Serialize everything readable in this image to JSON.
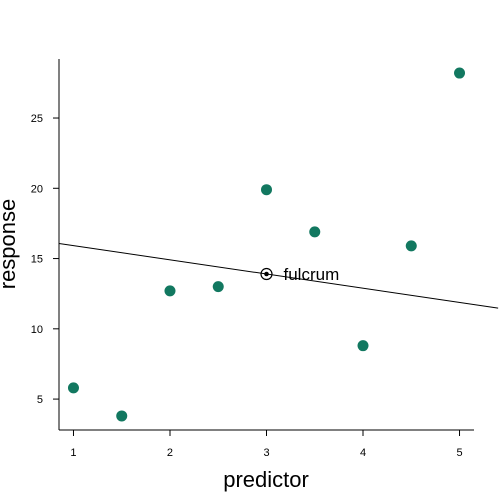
{
  "chart_data": {
    "type": "scatter",
    "xlabel": "predictor",
    "ylabel": "response",
    "xlim": [
      0.85,
      5.15
    ],
    "ylim": [
      2.8,
      29.2
    ],
    "x_ticks": [
      1,
      2,
      3,
      4,
      5
    ],
    "y_ticks": [
      5,
      10,
      15,
      20,
      25
    ],
    "grid": false,
    "point_color": "#127860",
    "points": [
      {
        "x": 1.0,
        "y": 5.8
      },
      {
        "x": 1.5,
        "y": 3.8
      },
      {
        "x": 2.0,
        "y": 12.7
      },
      {
        "x": 2.5,
        "y": 13.0
      },
      {
        "x": 3.0,
        "y": 19.9
      },
      {
        "x": 3.5,
        "y": 16.9
      },
      {
        "x": 4.0,
        "y": 8.8
      },
      {
        "x": 4.5,
        "y": 15.9
      },
      {
        "x": 5.0,
        "y": 28.2
      }
    ],
    "line": {
      "intercept": 16.93,
      "slope": -1.01
    },
    "annotation": {
      "label": "fulcrum",
      "x": 3.0,
      "y": 13.9
    }
  }
}
